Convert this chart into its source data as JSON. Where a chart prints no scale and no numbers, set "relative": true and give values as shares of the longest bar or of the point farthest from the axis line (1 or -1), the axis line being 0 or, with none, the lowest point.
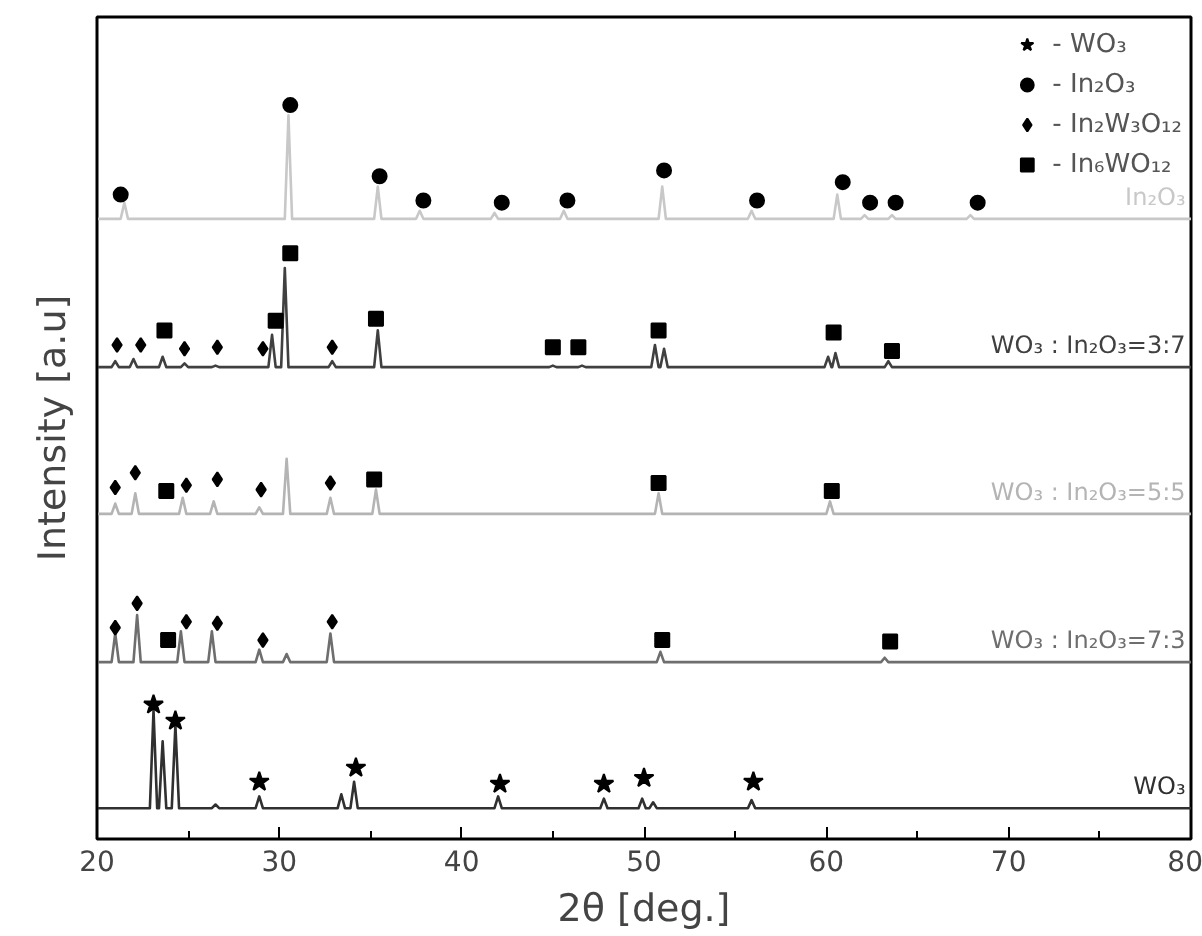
{
  "chart_data": {
    "type": "line",
    "relative": true,
    "xlabel": "2θ [deg.]",
    "ylabel": "Intensity [a.u]",
    "xlim": [
      20,
      80
    ],
    "xticks": [
      20,
      30,
      40,
      50,
      60,
      70,
      80
    ],
    "tick_labels": "x",
    "legend": "top right",
    "series": [
      {
        "name": "In₂O₃",
        "color": "#c8c8c8",
        "x": [
          20,
          21.3,
          21.5,
          21.7,
          30.3,
          30.5,
          30.7,
          35.2,
          35.4,
          35.6,
          37.5,
          37.7,
          37.9,
          41.6,
          41.8,
          42.0,
          45.4,
          45.6,
          45.8,
          50.8,
          51.0,
          51.2,
          55.7,
          55.9,
          56.1,
          60.4,
          60.6,
          60.8,
          61.9,
          62.1,
          62.3,
          63.4,
          63.6,
          63.8,
          67.7,
          67.9,
          68.1,
          80
        ],
        "values": [
          0.845,
          0.845,
          0.867,
          0.845,
          0.845,
          0.986,
          0.845,
          0.845,
          0.889,
          0.845,
          0.845,
          0.856,
          0.845,
          0.845,
          0.853,
          0.845,
          0.845,
          0.856,
          0.845,
          0.845,
          0.889,
          0.845,
          0.845,
          0.856,
          0.845,
          0.845,
          0.878,
          0.845,
          0.845,
          0.85,
          0.845,
          0.845,
          0.85,
          0.845,
          0.845,
          0.85,
          0.845,
          0.845
        ]
      },
      {
        "name": "WO₃ : In₂O₃=3:7",
        "color": "#404040",
        "x": [
          20,
          20.8,
          21.0,
          21.2,
          21.8,
          22.0,
          22.2,
          23.4,
          23.6,
          23.8,
          24.6,
          24.8,
          25.0,
          26.3,
          26.5,
          26.7,
          29.4,
          29.6,
          29.8,
          30.1,
          30.3,
          30.5,
          32.7,
          32.9,
          33.1,
          35.2,
          35.4,
          35.6,
          44.8,
          45.0,
          45.2,
          46.4,
          46.6,
          46.8,
          50.4,
          50.6,
          50.8,
          50.9,
          51.1,
          51.3,
          59.9,
          60.1,
          60.28,
          60.32,
          60.5,
          60.7,
          63.2,
          63.4,
          63.6,
          80
        ],
        "values": [
          0.643,
          0.643,
          0.651,
          0.643,
          0.643,
          0.654,
          0.643,
          0.643,
          0.657,
          0.643,
          0.643,
          0.648,
          0.643,
          0.643,
          0.645,
          0.643,
          0.643,
          0.687,
          0.643,
          0.643,
          0.778,
          0.643,
          0.643,
          0.651,
          0.643,
          0.643,
          0.693,
          0.643,
          0.643,
          0.645,
          0.643,
          0.643,
          0.645,
          0.643,
          0.643,
          0.673,
          0.643,
          0.643,
          0.668,
          0.643,
          0.643,
          0.657,
          0.643,
          0.643,
          0.662,
          0.643,
          0.643,
          0.651,
          0.643,
          0.643
        ]
      },
      {
        "name": "WO₃ : In₂O₃=5:5",
        "color": "#b4b4b4",
        "x": [
          20,
          20.8,
          21.0,
          21.2,
          21.9,
          22.1,
          22.3,
          24.5,
          24.7,
          24.9,
          26.2,
          26.4,
          26.6,
          28.7,
          28.9,
          29.1,
          30.2,
          30.4,
          30.6,
          32.6,
          32.8,
          33.0,
          35.1,
          35.3,
          35.5,
          50.6,
          50.8,
          51.0,
          60.0,
          60.2,
          60.4,
          80
        ],
        "values": [
          0.443,
          0.443,
          0.457,
          0.443,
          0.443,
          0.471,
          0.443,
          0.443,
          0.465,
          0.443,
          0.443,
          0.46,
          0.443,
          0.443,
          0.452,
          0.443,
          0.443,
          0.518,
          0.443,
          0.443,
          0.465,
          0.443,
          0.443,
          0.476,
          0.443,
          0.443,
          0.471,
          0.443,
          0.443,
          0.46,
          0.443,
          0.443
        ]
      },
      {
        "name": "WO₃ : In₂O₃=7:3",
        "color": "#6e6e6e",
        "x": [
          20,
          20.8,
          21.0,
          21.2,
          22.0,
          22.2,
          22.4,
          24.4,
          24.6,
          24.8,
          26.1,
          26.3,
          26.5,
          28.7,
          28.9,
          29.1,
          30.2,
          30.4,
          30.6,
          32.6,
          32.8,
          33.0,
          50.7,
          50.9,
          51.1,
          63.0,
          63.2,
          63.4,
          80
        ],
        "values": [
          0.241,
          0.241,
          0.28,
          0.241,
          0.241,
          0.305,
          0.241,
          0.241,
          0.283,
          0.241,
          0.241,
          0.283,
          0.241,
          0.241,
          0.258,
          0.241,
          0.241,
          0.252,
          0.241,
          0.241,
          0.28,
          0.241,
          0.241,
          0.255,
          0.241,
          0.241,
          0.247,
          0.241,
          0.241
        ]
      },
      {
        "name": "WO₃",
        "color": "#303030",
        "x": [
          20,
          22.9,
          23.1,
          23.3,
          23.4,
          23.6,
          23.8,
          24.1,
          24.3,
          24.5,
          26.3,
          26.5,
          26.7,
          28.7,
          28.9,
          29.1,
          33.2,
          33.4,
          33.6,
          33.9,
          34.1,
          34.3,
          41.8,
          42.0,
          42.2,
          47.6,
          47.8,
          48.0,
          49.7,
          49.9,
          50.1,
          50.3,
          50.5,
          50.7,
          55.7,
          55.9,
          56.1,
          80
        ],
        "values": [
          0.042,
          0.042,
          0.175,
          0.042,
          0.042,
          0.133,
          0.042,
          0.042,
          0.155,
          0.042,
          0.042,
          0.047,
          0.042,
          0.042,
          0.058,
          0.042,
          0.042,
          0.061,
          0.042,
          0.042,
          0.078,
          0.042,
          0.042,
          0.058,
          0.042,
          0.042,
          0.055,
          0.042,
          0.042,
          0.055,
          0.042,
          0.042,
          0.05,
          0.042,
          0.042,
          0.053,
          0.042,
          0.042
        ]
      },
      {
        "name": "- WO₃",
        "type": "scatter",
        "marker": "star",
        "color": "#000000",
        "x": [
          23.1,
          24.3,
          28.9,
          34.2,
          42.1,
          47.8,
          50.0,
          56.0
        ],
        "values": [
          0.183,
          0.161,
          0.078,
          0.097,
          0.075,
          0.075,
          0.083,
          0.078
        ]
      },
      {
        "name": "- In₂O₃",
        "type": "scatter",
        "marker": "circle",
        "color": "#000000",
        "x": [
          21.3,
          30.6,
          35.5,
          37.9,
          42.2,
          45.8,
          51.1,
          56.2,
          60.9,
          62.4,
          63.8,
          68.3
        ],
        "values": [
          0.878,
          1.0,
          0.903,
          0.87,
          0.867,
          0.87,
          0.911,
          0.87,
          0.895,
          0.867,
          0.867,
          0.867
        ]
      },
      {
        "name": "- In₂W₃O₁₂",
        "type": "scatter",
        "marker": "diamond",
        "color": "#000000",
        "x": [
          21.1,
          22.4,
          24.8,
          26.6,
          29.1,
          32.9,
          21.0,
          22.1,
          24.9,
          26.6,
          29.0,
          32.8,
          21.0,
          22.2,
          24.9,
          26.6,
          29.1,
          32.9
        ],
        "values": [
          0.673,
          0.673,
          0.668,
          0.67,
          0.668,
          0.67,
          0.479,
          0.499,
          0.482,
          0.49,
          0.476,
          0.485,
          0.288,
          0.321,
          0.296,
          0.294,
          0.271,
          0.296
        ]
      },
      {
        "name": "- In₆WO₁₂",
        "type": "scatter",
        "marker": "square",
        "color": "#000000",
        "x": [
          23.7,
          29.8,
          30.6,
          35.3,
          45.0,
          46.4,
          50.8,
          60.4,
          63.6,
          23.8,
          35.2,
          50.8,
          60.3,
          23.9,
          51.0,
          63.5
        ],
        "values": [
          0.693,
          0.706,
          0.798,
          0.709,
          0.67,
          0.67,
          0.693,
          0.69,
          0.665,
          0.474,
          0.49,
          0.485,
          0.474,
          0.271,
          0.271,
          0.269
        ]
      }
    ]
  }
}
